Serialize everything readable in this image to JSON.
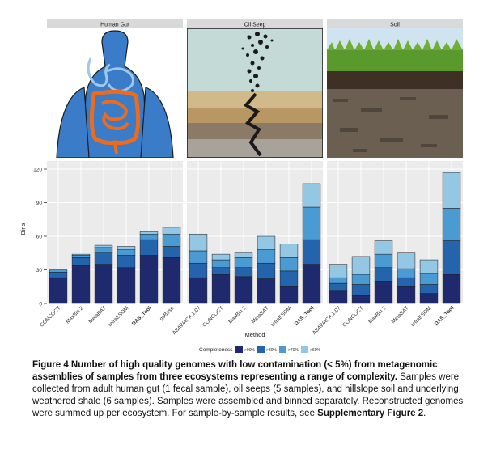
{
  "panels": [
    {
      "title": "Human Gut",
      "illustration": "human-torso-digestive-tract"
    },
    {
      "title": "Oil Seep",
      "illustration": "oil-seep-sediment-bubbles"
    },
    {
      "title": "Soil",
      "illustration": "grass-over-soil-profile"
    }
  ],
  "colors": {
    "strip_bg": "#d9d9d9",
    "plot_bg": "#ebebeb",
    "grid": "#ffffff",
    "series": [
      "#1f2a6e",
      "#2464ad",
      "#4a9ad3",
      "#93c7e4"
    ],
    "gut_body": "#3a7cc7",
    "intestine": "#ef6b1c",
    "sky": "#cfe3f1",
    "grass": "#5a9a2c"
  },
  "chart_data": {
    "type": "bar",
    "stacked": true,
    "xlabel": "Method",
    "ylabel": "Bins",
    "ylim": [
      0,
      120
    ],
    "yticks": [
      0,
      30,
      60,
      90,
      120
    ],
    "legend": {
      "title": "Completeness",
      "position": "bottom"
    },
    "series_names": [
      ">90%",
      ">80%",
      ">70%",
      ">60%"
    ],
    "facets": [
      {
        "name": "Human Gut",
        "categories": [
          "CONCOCT",
          "MaxBin 2",
          "MetaBAT",
          "tetraESOM",
          "DAS_Tool",
          "gsBase"
        ],
        "bold_categories": [
          "DAS_Tool"
        ],
        "series": [
          {
            "name": ">90%",
            "values": [
              23,
              34,
              35,
              32,
              43,
              41
            ]
          },
          {
            "name": ">80%",
            "values": [
              5,
              7,
              10,
              11,
              14,
              10
            ]
          },
          {
            "name": ">70%",
            "values": [
              2,
              2,
              5,
              5,
              5,
              11
            ]
          },
          {
            "name": ">60%",
            "values": [
              0,
              1,
              2,
              3,
              2,
              6
            ]
          }
        ]
      },
      {
        "name": "Oil Seep",
        "categories": [
          "ABAWACA 1.07",
          "CONCOCT",
          "MaxBin 2",
          "MetaBAT",
          "tetraESOM",
          "DAS_Tool"
        ],
        "bold_categories": [
          "DAS_Tool"
        ],
        "series": [
          {
            "name": ">90%",
            "values": [
              23,
              26,
              24,
              22,
              15,
              35
            ]
          },
          {
            "name": ">80%",
            "values": [
              13,
              6,
              8,
              14,
              14,
              22
            ]
          },
          {
            "name": ">70%",
            "values": [
              11,
              7,
              9,
              12,
              12,
              29
            ]
          },
          {
            "name": ">60%",
            "values": [
              15,
              5,
              4,
              12,
              12,
              21
            ]
          }
        ]
      },
      {
        "name": "Soil",
        "categories": [
          "ABAWACA 1.07",
          "CONCOCT",
          "MaxBin 2",
          "MetaBAT",
          "tetraESOM",
          "DAS_Tool"
        ],
        "bold_categories": [
          "DAS_Tool"
        ],
        "series": [
          {
            "name": ">90%",
            "values": [
              11,
              7,
              20,
              15,
              9,
              26
            ]
          },
          {
            "name": ">80%",
            "values": [
              7,
              10,
              12,
              8,
              8,
              30
            ]
          },
          {
            "name": ">70%",
            "values": [
              5,
              9,
              12,
              8,
              10,
              29
            ]
          },
          {
            "name": ">60%",
            "values": [
              12,
              16,
              12,
              14,
              12,
              32
            ]
          }
        ]
      }
    ]
  },
  "caption": {
    "bold_lead": "Figure 4 Number of high quality genomes with low contamination (< 5%) from metagenomic assemblies of samples from three ecosystems representing a range of complexity.",
    "body": " Samples were collected from adult human gut (1 fecal sample), oil seeps (5 samples), and hillslope soil and underlying weathered shale (6 samples). Samples were assembled and binned separately. Reconstructed genomes were summed up per ecosystem. For sample-by-sample results, see ",
    "bold_ref": "Supplementary Figure 2",
    "end": "."
  }
}
